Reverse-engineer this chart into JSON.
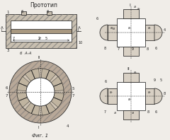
{
  "title": "Прототип",
  "subtitle": "Фиг. 1",
  "bg_color": "#f0ede8",
  "line_color": "#222222",
  "hatch_fill": "#c8bfb0",
  "arm_fill": "#d8d0c4",
  "white": "#ffffff",
  "ring_outer_fill": "#b8a898",
  "ring_mid_fill": "#d0c4b4"
}
